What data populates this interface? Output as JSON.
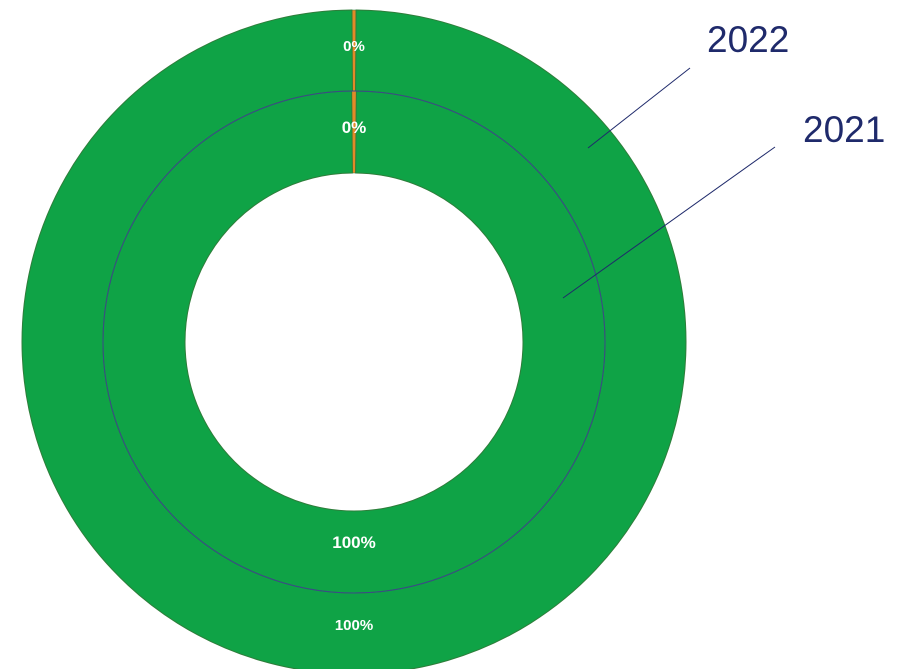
{
  "chart_data": {
    "type": "pie",
    "subtype": "doughnut",
    "title": "",
    "rings": [
      {
        "name": "2022",
        "position": "outer",
        "slices": [
          {
            "value": 0.2,
            "label": "0%",
            "color": "#e38a28"
          },
          {
            "value": 99.8,
            "label": "100%",
            "color": "#0fa346"
          }
        ]
      },
      {
        "name": "2021",
        "position": "inner",
        "slices": [
          {
            "value": 0.3,
            "label": "0%",
            "color": "#e38a28"
          },
          {
            "value": 99.7,
            "label": "100%",
            "color": "#0fa346"
          }
        ]
      }
    ],
    "colors": {
      "ring_border": "#2e7d3a",
      "divider": "#3a4a8a",
      "leader_line": "#1f2a6b"
    }
  }
}
